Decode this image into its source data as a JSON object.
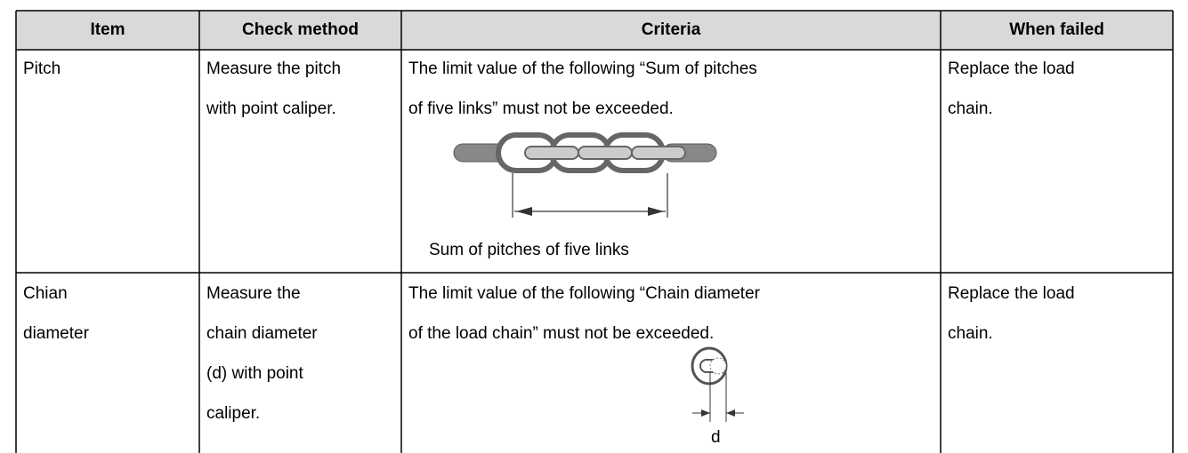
{
  "table": {
    "header": [
      "Item",
      "Check method",
      "Criteria",
      "When failed"
    ],
    "rows": [
      {
        "item": [
          "Pitch"
        ],
        "method": [
          "Measure the pitch",
          "with point caliper."
        ],
        "criteria": [
          "The limit value of the following “Sum of pitches",
          "of five links” must not be exceeded."
        ],
        "caption": "Sum of pitches of five links",
        "action": [
          "Replace the load",
          "chain."
        ]
      },
      {
        "item": [
          "Chian",
          "diameter"
        ],
        "method": [
          "Measure the",
          "chain diameter",
          "(d) with point",
          "caliper."
        ],
        "criteria": [
          "The limit value of the following “Chain diameter",
          "of the load chain” must not be exceeded."
        ],
        "caption": "d",
        "action": [
          "Replace the load",
          "chain."
        ]
      }
    ]
  }
}
